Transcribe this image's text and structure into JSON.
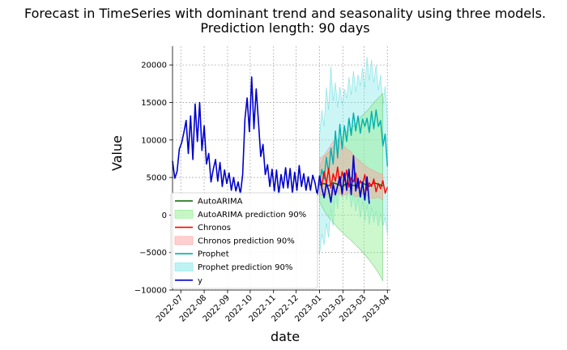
{
  "chart_data": {
    "type": "line",
    "title": "Forecast in TimeSeries with dominant trend and seasonality using three models.",
    "subtitle": "Prediction length: 90 days",
    "xlabel": "date",
    "ylabel": "Value",
    "ylim": [
      -10000,
      22500
    ],
    "yticks": [
      -10000,
      -5000,
      0,
      5000,
      10000,
      15000,
      20000
    ],
    "ytick_labels": [
      "−10000",
      "−5000",
      "0",
      "5000",
      "10000",
      "15000",
      "20000"
    ],
    "x_start": "2022-06-20",
    "x_end": "2023-04-05",
    "forecast_start": "2023-01-01",
    "xticks": [
      "2022-07",
      "2022-08",
      "2022-09",
      "2022-10",
      "2022-11",
      "2022-12",
      "2023-01",
      "2023-02",
      "2023-03",
      "2023-04"
    ],
    "grid": true,
    "legend_position": "lower-left",
    "colors": {
      "autoarima": "#006400",
      "autoarima_band": "#90ee90",
      "chronos": "#ff0000",
      "chronos_band": "#ffa0a0",
      "prophet": "#00b0b0",
      "prophet_band": "#80e8e8",
      "y": "#0000cd"
    },
    "legend": [
      {
        "label": "AutoARIMA",
        "kind": "line",
        "color": "#006400"
      },
      {
        "label": "AutoARIMA prediction 90%",
        "kind": "band",
        "color": "#90ee90"
      },
      {
        "label": "Chronos",
        "kind": "line",
        "color": "#ff0000"
      },
      {
        "label": "Chronos prediction 90%",
        "kind": "band",
        "color": "#ffa0a0"
      },
      {
        "label": "Prophet",
        "kind": "line",
        "color": "#00b0b0"
      },
      {
        "label": "Prophet prediction 90%",
        "kind": "band",
        "color": "#80e8e8"
      },
      {
        "label": "y",
        "kind": "line",
        "color": "#0000cd"
      }
    ],
    "series": [
      {
        "name": "y",
        "x_offset_days": 0,
        "step_days": 3,
        "values": [
          7200,
          4900,
          5800,
          8800,
          9600,
          11000,
          12600,
          8200,
          13200,
          7400,
          14800,
          9800,
          15000,
          8600,
          11900,
          6800,
          8200,
          4400,
          6100,
          7400,
          4500,
          7000,
          3800,
          6000,
          4200,
          5600,
          3300,
          5000,
          3200,
          4400,
          2800,
          5400,
          12800,
          15600,
          11100,
          18400,
          11500,
          16800,
          12400,
          7800,
          9400,
          5400,
          6700,
          3800,
          6100,
          3200,
          6000,
          2800,
          5400,
          3600,
          6300,
          3600,
          6200,
          2900,
          5700,
          3300,
          6600,
          3800,
          5500,
          3300,
          5100,
          3300,
          5300,
          4300,
          2600,
          5200,
          3600,
          2300,
          4200,
          3300,
          1700,
          4100,
          2700,
          3900,
          5100,
          2800,
          5600,
          3300,
          6100,
          2700,
          7900,
          3200,
          4900,
          2400,
          4400,
          2000,
          5100,
          1500
        ]
      },
      {
        "name": "AutoARIMA",
        "x_offset_days": 195,
        "step_days": 6,
        "values": [
          4000,
          4200,
          3900,
          4300,
          4100,
          3800,
          4200,
          4000,
          3900,
          4400,
          4100,
          3800,
          4300,
          4100,
          3900
        ]
      },
      {
        "name": "Chronos",
        "x_offset_days": 195,
        "step_days": 3,
        "values": [
          5200,
          3800,
          5800,
          4200,
          6200,
          3600,
          5500,
          4500,
          6400,
          3900,
          5800,
          4600,
          6000,
          3700,
          5000,
          4400,
          5600,
          3600,
          4600,
          4000,
          5400,
          3300,
          4300,
          3800,
          4800,
          3100,
          4200,
          3500,
          4600,
          2900,
          3700
        ]
      },
      {
        "name": "Prophet",
        "x_offset_days": 195,
        "step_days": 3,
        "values": [
          4100,
          6100,
          4800,
          7700,
          5600,
          8900,
          6800,
          11200,
          7600,
          12100,
          8800,
          11900,
          9800,
          12900,
          10600,
          13600,
          11200,
          13200,
          10900,
          12800,
          11800,
          12900,
          11000,
          13800,
          11500,
          14000,
          11800,
          12600,
          9200,
          10800,
          6500
        ]
      }
    ],
    "bands": [
      {
        "name": "AutoARIMA prediction 90%",
        "x_offset_days": 195,
        "step_days": 6,
        "lower": [
          1800,
          600,
          -300,
          -1000,
          -1700,
          -2300,
          -2900,
          -3400,
          -4000,
          -4600,
          -5300,
          -6000,
          -6800,
          -7700,
          -8800
        ],
        "upper": [
          6200,
          7800,
          8300,
          9100,
          9900,
          10400,
          11100,
          11600,
          12200,
          13000,
          13600,
          14200,
          15000,
          15600,
          16200
        ]
      },
      {
        "name": "Chronos prediction 90%",
        "x_offset_days": 195,
        "step_days": 6,
        "lower": [
          2800,
          2500,
          2900,
          2600,
          3100,
          2500,
          2800,
          3100,
          2400,
          2600,
          2900,
          2300,
          2200,
          2400,
          2000
        ],
        "upper": [
          7500,
          8000,
          8900,
          9800,
          10100,
          9500,
          8800,
          8400,
          7600,
          7200,
          6600,
          6200,
          5900,
          5600,
          5400
        ]
      },
      {
        "name": "Prophet prediction 90%",
        "x_offset_days": 195,
        "step_days": 3,
        "lower": [
          -5300,
          -2500,
          -4000,
          -1100,
          -3000,
          900,
          -1500,
          3000,
          800,
          4600,
          2200,
          4100,
          2000,
          3500,
          1000,
          2800,
          500,
          2200,
          -400,
          1800,
          -800,
          1400,
          -1300,
          1000,
          -1000,
          500,
          -1500,
          300,
          -1500,
          -300,
          -2600
        ],
        "upper": [
          10500,
          14000,
          11800,
          17000,
          14000,
          19800,
          15200,
          17700,
          14300,
          17100,
          14800,
          16800,
          15600,
          18400,
          16000,
          19200,
          16400,
          18700,
          17200,
          19600,
          16900,
          21100,
          17900,
          20700,
          17600,
          20000,
          16600,
          18700,
          14700,
          17200,
          13000
        ]
      }
    ]
  }
}
